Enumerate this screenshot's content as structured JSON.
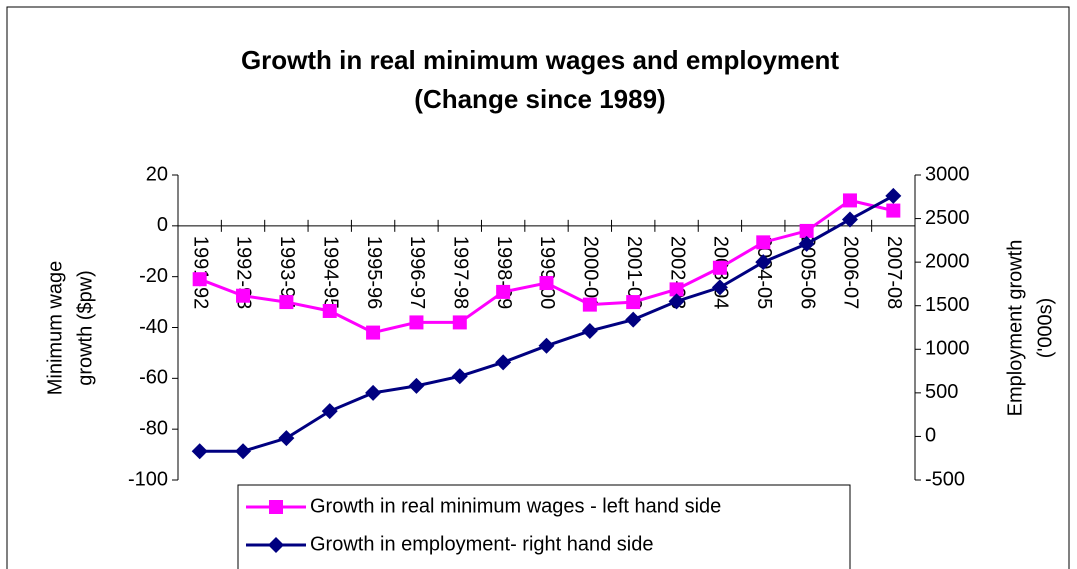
{
  "chart_data": {
    "type": "line",
    "title": [
      "Growth in real minimum wages and employment",
      "(Change since 1989)"
    ],
    "y_label": [
      "Minimum wage",
      "growth ($pw)"
    ],
    "y2_label": [
      "Employment growth",
      "('000s)"
    ],
    "categories": [
      "1991-92",
      "1992-93",
      "1993-94",
      "1994-95",
      "1995-96",
      "1996-97",
      "1997-98",
      "1998-99",
      "1999-00",
      "2000-01",
      "2001-02",
      "2002-03",
      "2003-04",
      "2004-05",
      "2005-06",
      "2006-07",
      "2007-08"
    ],
    "series": [
      {
        "name": "Growth in real minimum wages - left hand side",
        "color": "#ff00ff",
        "marker": "square",
        "axis": "y",
        "values": [
          -21,
          -27.5,
          -30,
          -33.5,
          -42,
          -38,
          -38,
          -26,
          -22.5,
          -31,
          -30,
          -25,
          -16.5,
          -6.5,
          -2,
          10,
          6
        ]
      },
      {
        "name": "Growth in employment- right hand side",
        "color": "#000080",
        "marker": "diamond",
        "axis": "y2",
        "values": [
          -170,
          -170,
          -20,
          290,
          500,
          580,
          690,
          850,
          1040,
          1210,
          1340,
          1550,
          1710,
          2000,
          2210,
          2490,
          2760
        ]
      }
    ],
    "ylim": [
      -100,
      20
    ],
    "yticks": [
      -100,
      -80,
      -60,
      -40,
      -20,
      0,
      20
    ],
    "y2lim": [
      -500,
      3000
    ],
    "y2ticks": [
      -500,
      0,
      500,
      1000,
      1500,
      2000,
      2500,
      3000
    ],
    "grid": false,
    "legend": "bottom"
  }
}
